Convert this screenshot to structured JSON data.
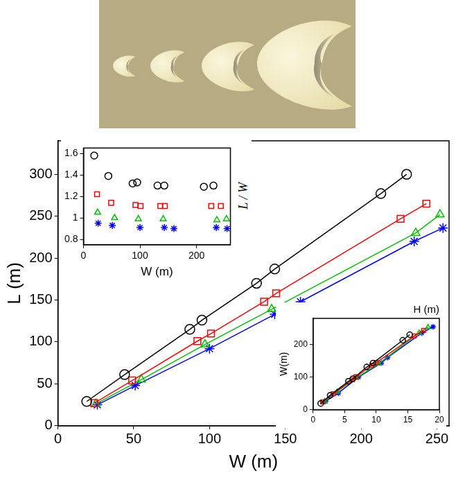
{
  "chart_data": [
    {
      "type": "scatter",
      "x_label": "W (m)",
      "y_label": "L (m)",
      "xlim": [
        0,
        258
      ],
      "ylim": [
        0,
        340
      ],
      "xticks": [
        0,
        50,
        100,
        150,
        200,
        250
      ],
      "yticks": [
        0,
        50,
        100,
        150,
        200,
        250,
        300
      ],
      "grid": false,
      "series": [
        {
          "color": "#000000",
          "marker": "circle",
          "line_style": "solid",
          "x": [
            19,
            44,
            87,
            95,
            131,
            143,
            213,
            230
          ],
          "values": [
            29,
            61,
            115,
            126,
            170,
            187,
            277,
            300
          ]
        },
        {
          "color": "#ff0000",
          "marker": "square",
          "line_style": "solid",
          "x": [
            24,
            49,
            92,
            101,
            136,
            144,
            226,
            243
          ],
          "values": [
            27,
            54,
            101,
            110,
            148,
            158,
            247,
            265
          ]
        },
        {
          "color": "#00c000",
          "marker": "triangle",
          "line_style": "solid",
          "x": [
            25,
            55,
            97,
            141,
            236,
            252
          ],
          "values": [
            26,
            55,
            97,
            139,
            230,
            252
          ]
        },
        {
          "color": "#0000ff",
          "marker": "star",
          "line_style": "solid",
          "x": [
            26,
            51,
            100,
            143,
            160,
            235,
            254
          ],
          "values": [
            25,
            48,
            92,
            133,
            148,
            220,
            236
          ]
        }
      ]
    },
    {
      "type": "scatter",
      "x_label": "W (m)",
      "y_label": "L / W",
      "xlim": [
        0,
        260
      ],
      "ylim": [
        0.75,
        1.65
      ],
      "xticks": [
        0,
        100,
        200
      ],
      "yticks": [
        0.8,
        1,
        1.2,
        1.4,
        1.6
      ],
      "grid": false,
      "series": [
        {
          "color": "#000000",
          "marker": "circle",
          "line_style": "none",
          "x": [
            19,
            44,
            87,
            95,
            131,
            143,
            213,
            230
          ],
          "values": [
            1.58,
            1.39,
            1.32,
            1.33,
            1.3,
            1.3,
            1.29,
            1.3
          ]
        },
        {
          "color": "#ff0000",
          "marker": "square",
          "line_style": "none",
          "x": [
            24,
            49,
            92,
            101,
            136,
            144,
            226,
            243
          ],
          "values": [
            1.22,
            1.14,
            1.12,
            1.11,
            1.11,
            1.11,
            1.11,
            1.11
          ]
        },
        {
          "color": "#00c000",
          "marker": "triangle",
          "line_style": "none",
          "x": [
            25,
            55,
            97,
            141,
            236,
            253
          ],
          "values": [
            1.05,
            1.0,
            0.99,
            0.99,
            0.98,
            0.99
          ]
        },
        {
          "color": "#0000ff",
          "marker": "star",
          "line_style": "none",
          "x": [
            26,
            51,
            100,
            143,
            160,
            235,
            254
          ],
          "values": [
            0.95,
            0.93,
            0.91,
            0.91,
            0.9,
            0.91,
            0.9
          ]
        }
      ]
    },
    {
      "type": "scatter",
      "x_label": "H (m)",
      "y_label": "W(m)",
      "xlim": [
        0,
        20
      ],
      "ylim": [
        0,
        280
      ],
      "xticks": [
        0,
        5,
        10,
        15,
        20
      ],
      "yticks": [
        0,
        100,
        200
      ],
      "grid": false,
      "series": [
        {
          "color": "#000000",
          "marker": "circle",
          "line_style": "solid",
          "x": [
            1.2,
            2.7,
            5.6,
            6.3,
            8.5,
            9.5,
            14.2,
            15.3
          ],
          "values": [
            19,
            44,
            87,
            95,
            131,
            143,
            213,
            230
          ]
        },
        {
          "color": "#ff0000",
          "marker": "square",
          "line_style": "solid",
          "x": [
            1.5,
            3.2,
            6.2,
            6.8,
            9.3,
            10.0,
            16.0,
            17.5
          ],
          "values": [
            24,
            49,
            92,
            101,
            136,
            144,
            226,
            243
          ]
        },
        {
          "color": "#00c000",
          "marker": "triangle",
          "line_style": "solid",
          "x": [
            1.8,
            3.8,
            6.8,
            10.4,
            16.8,
            18.2
          ],
          "values": [
            25,
            55,
            97,
            141,
            236,
            253
          ]
        },
        {
          "color": "#0000ff",
          "marker": "star",
          "line_style": "solid",
          "x": [
            2.0,
            4.0,
            7.2,
            10.8,
            11.8,
            17.2,
            19.0
          ],
          "values": [
            26,
            51,
            100,
            143,
            160,
            235,
            254
          ]
        }
      ]
    }
  ]
}
